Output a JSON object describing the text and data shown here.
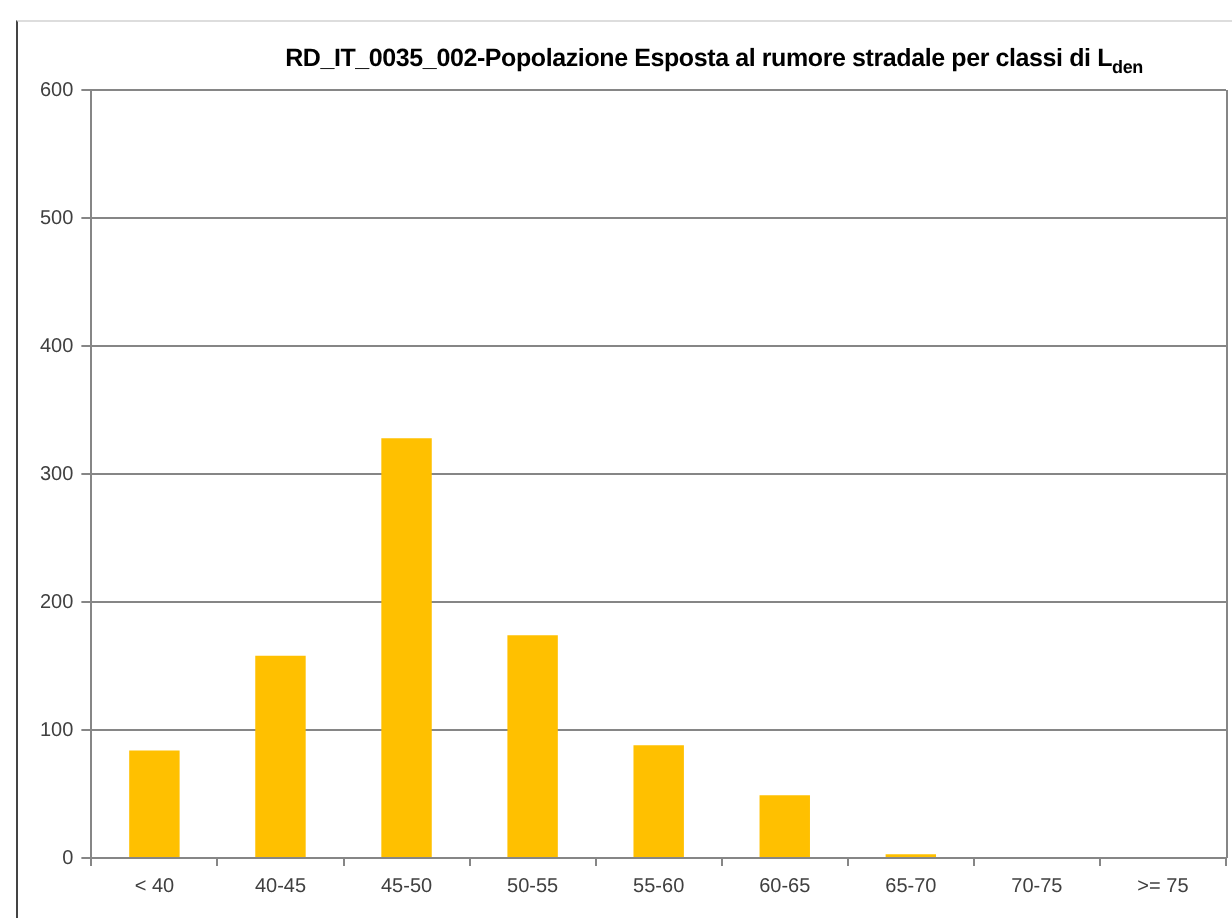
{
  "chart_data": {
    "type": "bar",
    "title": "RD_IT_0035_002-Popolazione Esposta al rumore stradale per classi di L$_{den}$",
    "categories": [
      "< 40",
      "40-45",
      "45-50",
      "50-55",
      "55-60",
      "60-65",
      "65-70",
      "70-75",
      ">= 75"
    ],
    "values": [
      84,
      158,
      328,
      174,
      88,
      49,
      3,
      0,
      0
    ],
    "color": "#ffc000",
    "ylim": [
      0,
      600
    ],
    "yticks": [
      0,
      100,
      200,
      300,
      400,
      500,
      600
    ],
    "grid": "y",
    "legend": false
  }
}
